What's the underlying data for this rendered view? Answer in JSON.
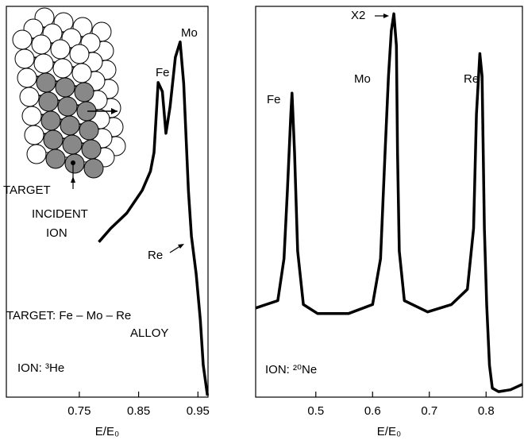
{
  "chart_data": [
    {
      "type": "line",
      "xlabel": "E/E₀",
      "xlim": [
        0.627,
        0.967
      ],
      "xticks": [
        0.75,
        0.85,
        0.95
      ],
      "ylim": [
        0,
        100
      ],
      "x": [
        0.783,
        0.803,
        0.83,
        0.856,
        0.87,
        0.876,
        0.883,
        0.89,
        0.896,
        0.903,
        0.912,
        0.92,
        0.926,
        0.934,
        0.939,
        0.947,
        0.954,
        0.959,
        0.966
      ],
      "series": [
        {
          "color": "#000000",
          "values": [
            39.7,
            43.2,
            47.1,
            52.9,
            57.8,
            62.6,
            80.5,
            78.2,
            67.5,
            74.3,
            87.0,
            90.9,
            80.2,
            52.9,
            41.2,
            31.5,
            19.8,
            8.2,
            0.4
          ]
        }
      ],
      "annotations": [
        "Fe",
        "Mo",
        "Re",
        "TARGET",
        "INCIDENT",
        "ION",
        "TARGET:  Fe – Mo – Re",
        "ALLOY",
        "ION:  ³He"
      ]
    },
    {
      "type": "line",
      "xlabel": "E/E₀",
      "xlim": [
        0.394,
        0.864
      ],
      "xticks": [
        0.5,
        0.6,
        0.7,
        0.8
      ],
      "ylim": [
        0,
        100
      ],
      "x": [
        0.394,
        0.4125,
        0.433,
        0.444,
        0.45,
        0.456,
        0.458,
        0.4625,
        0.468,
        0.478,
        0.503,
        0.558,
        0.6,
        0.614,
        0.622,
        0.628,
        0.633,
        0.6375,
        0.642,
        0.644,
        0.647,
        0.656,
        0.697,
        0.739,
        0.767,
        0.778,
        0.783,
        0.789,
        0.793,
        0.797,
        0.801,
        0.806,
        0.811,
        0.822,
        0.843,
        0.864
      ],
      "series": [
        {
          "color": "#000000",
          "values": [
            22.8,
            23.7,
            24.7,
            35.4,
            52.9,
            72.4,
            77.8,
            62.6,
            37.4,
            23.7,
            21.4,
            21.4,
            23.7,
            35.4,
            62.6,
            82.1,
            93.8,
            98.1,
            89.9,
            62.6,
            37.4,
            24.7,
            21.8,
            23.7,
            27.6,
            43.2,
            72.4,
            87.9,
            82.1,
            43.2,
            23.7,
            8.2,
            2.3,
            1.4,
            1.9,
            3.3
          ]
        }
      ],
      "annotations": [
        "Fe",
        "Mo",
        "X2",
        "Re",
        "ION:  ²⁰Ne"
      ]
    }
  ]
}
